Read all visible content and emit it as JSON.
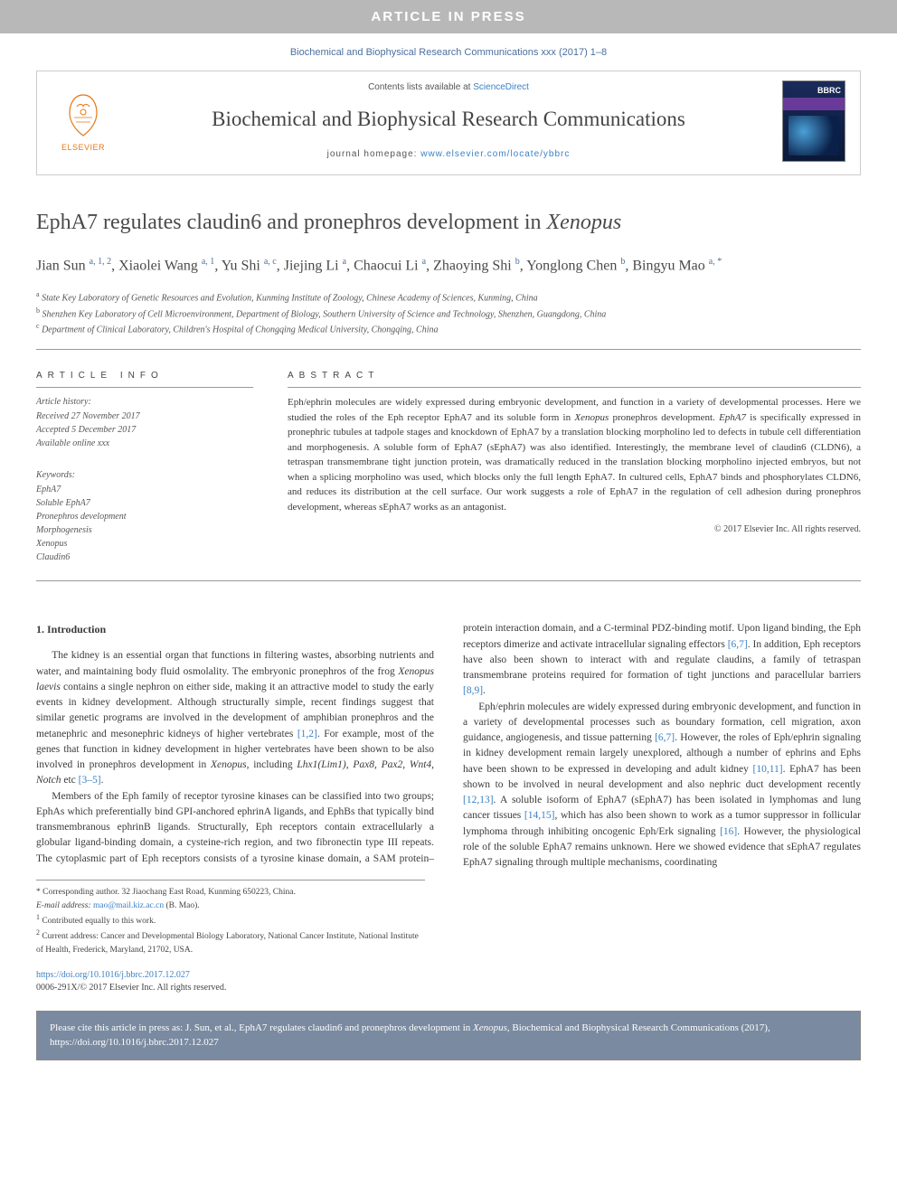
{
  "banner": {
    "text": "ARTICLE IN PRESS"
  },
  "journalRef": "Biochemical and Biophysical Research Communications xxx (2017) 1–8",
  "header": {
    "contentsPrefix": "Contents lists available at ",
    "contentsLink": "ScienceDirect",
    "journalTitle": "Biochemical and Biophysical Research Communications",
    "homepagePrefix": "journal homepage: ",
    "homepageLink": "www.elsevier.com/locate/ybbrc",
    "publisher": "ELSEVIER",
    "coverLabel": "BBRC"
  },
  "article": {
    "titlePrefix": "EphA7 regulates claudin6 and pronephros development in ",
    "titleItalic": "Xenopus",
    "authorsHtml": "Jian Sun <sup>a, 1, 2</sup>, Xiaolei Wang <sup>a, 1</sup>, Yu Shi <sup>a, c</sup>, Jiejing Li <sup>a</sup>, Chaocui Li <sup>a</sup>, Zhaoying Shi <sup>b</sup>, Yonglong Chen <sup>b</sup>, Bingyu Mao <sup>a, *</sup>",
    "affiliations": [
      {
        "sup": "a",
        "text": "State Key Laboratory of Genetic Resources and Evolution, Kunming Institute of Zoology, Chinese Academy of Sciences, Kunming, China"
      },
      {
        "sup": "b",
        "text": "Shenzhen Key Laboratory of Cell Microenvironment, Department of Biology, Southern University of Science and Technology, Shenzhen, Guangdong, China"
      },
      {
        "sup": "c",
        "text": "Department of Clinical Laboratory, Children's Hospital of Chongqing Medical University, Chongqing, China"
      }
    ]
  },
  "info": {
    "heading": "ARTICLE INFO",
    "historyLabel": "Article history:",
    "history": [
      "Received 27 November 2017",
      "Accepted 5 December 2017",
      "Available online xxx"
    ],
    "keywordsLabel": "Keywords:",
    "keywords": [
      "EphA7",
      "Soluble EphA7",
      "Pronephros development",
      "Morphogenesis",
      "Xenopus",
      "Claudin6"
    ]
  },
  "abstract": {
    "heading": "ABSTRACT",
    "text": "Eph/ephrin molecules are widely expressed during embryonic development, and function in a variety of developmental processes. Here we studied the roles of the Eph receptor EphA7 and its soluble form in Xenopus pronephros development. EphA7 is specifically expressed in pronephric tubules at tadpole stages and knockdown of EphA7 by a translation blocking morpholino led to defects in tubule cell differentiation and morphogenesis. A soluble form of EphA7 (sEphA7) was also identified. Interestingly, the membrane level of claudin6 (CLDN6), a tetraspan transmembrane tight junction protein, was dramatically reduced in the translation blocking morpholino injected embryos, but not when a splicing morpholino was used, which blocks only the full length EphA7. In cultured cells, EphA7 binds and phosphorylates CLDN6, and reduces its distribution at the cell surface. Our work suggests a role of EphA7 in the regulation of cell adhesion during pronephros development, whereas sEphA7 works as an antagonist.",
    "copyright": "© 2017 Elsevier Inc. All rights reserved."
  },
  "body": {
    "sectionHead": "1. Introduction",
    "paragraphs": [
      "The kidney is an essential organ that functions in filtering wastes, absorbing nutrients and water, and maintaining body fluid osmolality. The embryonic pronephros of the frog <span class=\"italic\">Xenopus laevis</span> contains a single nephron on either side, making it an attractive model to study the early events in kidney development. Although structurally simple, recent findings suggest that similar genetic programs are involved in the development of amphibian pronephros and the metanephric and mesonephric kidneys of higher vertebrates <span class=\"cite\">[1,2]</span>. For example, most of the genes that function in kidney development in higher vertebrates have been shown to be also involved in pronephros development in <span class=\"italic\">Xenopus</span>, including <span class=\"italic\">Lhx1(Lim1)</span>, <span class=\"italic\">Pax8</span>, <span class=\"italic\">Pax2</span>, <span class=\"italic\">Wnt4</span>, <span class=\"italic\">Notch</span> etc <span class=\"cite\">[3–5]</span>.",
      "Members of the Eph family of receptor tyrosine kinases can be classified into two groups; EphAs which preferentially bind GPI-anchored ephrinA ligands, and EphBs that typically bind transmembranous ephrinB ligands. Structurally, Eph receptors contain extracellularly a globular ligand-binding domain, a cysteine-rich region, and two fibronectin type III repeats. The cytoplasmic part of Eph receptors consists of a tyrosine kinase domain, a SAM protein–protein interaction domain, and a C-terminal PDZ-binding motif. Upon ligand binding, the Eph receptors dimerize and activate intracellular signaling effectors <span class=\"cite\">[6,7]</span>. In addition, Eph receptors have also been shown to interact with and regulate claudins, a family of tetraspan transmembrane proteins required for formation of tight junctions and paracellular barriers <span class=\"cite\">[8,9]</span>.",
      "Eph/ephrin molecules are widely expressed during embryonic development, and function in a variety of developmental processes such as boundary formation, cell migration, axon guidance, angiogenesis, and tissue patterning <span class=\"cite\">[6,7]</span>. However, the roles of Eph/ephrin signaling in kidney development remain largely unexplored, although a number of ephrins and Ephs have been shown to be expressed in developing and adult kidney <span class=\"cite\">[10,11]</span>. EphA7 has been shown to be involved in neural development and also nephric duct development recently <span class=\"cite\">[12,13]</span>. A soluble isoform of EphA7 (sEphA7) has been isolated in lymphomas and lung cancer tissues <span class=\"cite\">[14,15]</span>, which has also been shown to work as a tumor suppressor in follicular lymphoma through inhibiting oncogenic Eph/Erk signaling <span class=\"cite\">[16]</span>. However, the physiological role of the soluble EphA7 remains unknown. Here we showed evidence that sEphA7 regulates EphA7 signaling through multiple mechanisms, coordinating"
    ]
  },
  "footnotes": {
    "corresponding": "* Corresponding author. 32 Jiaochang East Road, Kunming 650223, China.",
    "emailLabel": "E-mail address:",
    "email": "mao@mail.kiz.ac.cn",
    "emailSuffix": " (B. Mao).",
    "note1": "Contributed equally to this work.",
    "note2": "Current address: Cancer and Developmental Biology Laboratory, National Cancer Institute, National Institute of Health, Frederick, Maryland, 21702, USA."
  },
  "doi": {
    "link": "https://doi.org/10.1016/j.bbrc.2017.12.027",
    "issn": "0006-291X/© 2017 Elsevier Inc. All rights reserved."
  },
  "citation": "Please cite this article in press as: J. Sun, et al., EphA7 regulates claudin6 and pronephros development in Xenopus, Biochemical and Biophysical Research Communications (2017), https://doi.org/10.1016/j.bbrc.2017.12.027",
  "colors": {
    "banner_bg": "#b8b8b8",
    "link": "#3b82c4",
    "elsevier_orange": "#e67817",
    "text": "#3a3a3a",
    "citation_bg": "#7a8aa0",
    "border": "#999999"
  }
}
